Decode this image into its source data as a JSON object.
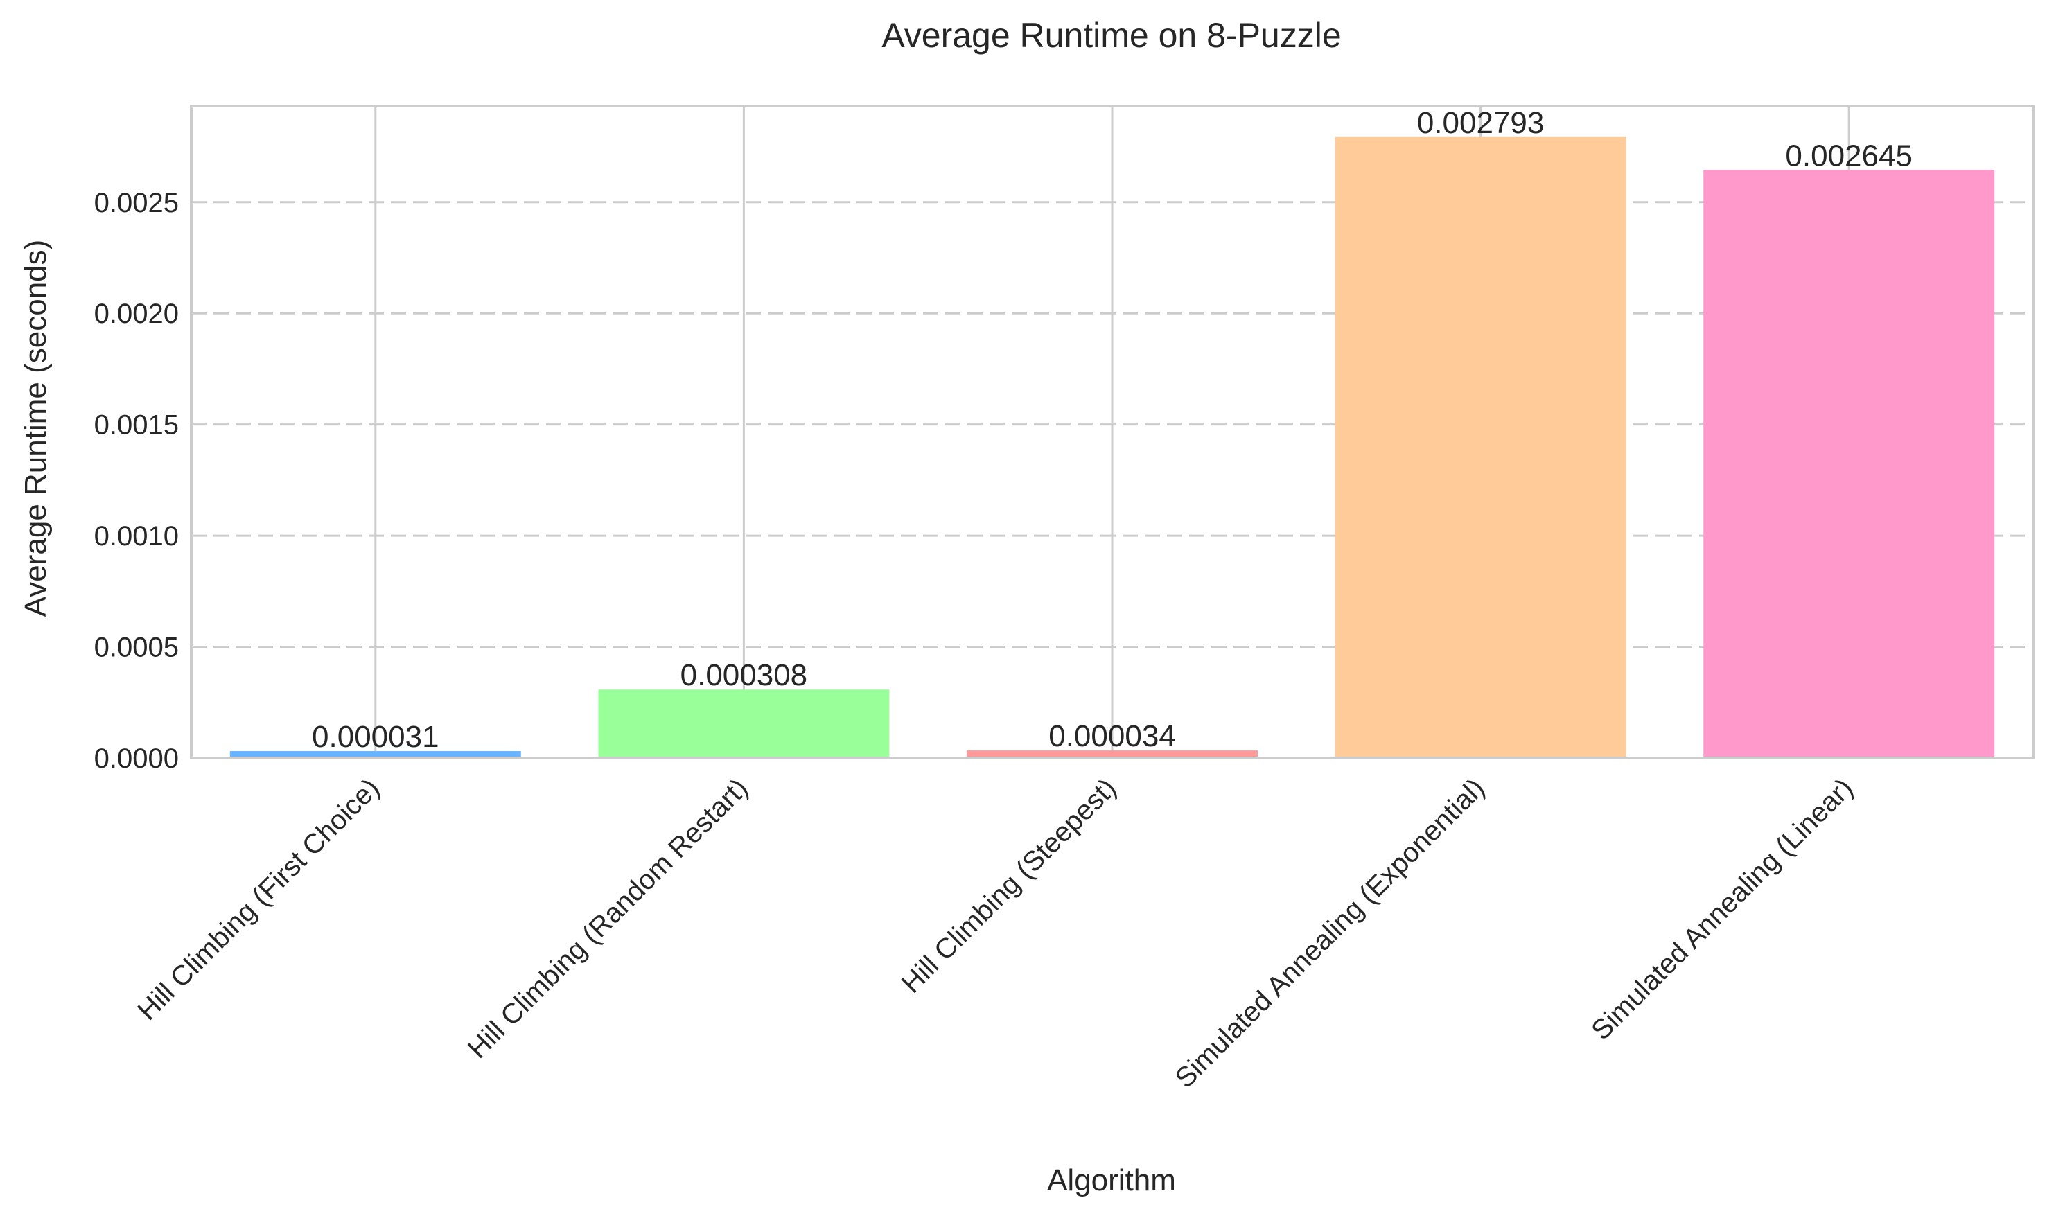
{
  "chart_data": {
    "type": "bar",
    "title": "Average Runtime on 8-Puzzle",
    "xlabel": "Algorithm",
    "ylabel": "Average Runtime (seconds)",
    "categories": [
      "Hill Climbing (First Choice)",
      "Hill Climbing (Random Restart)",
      "Hill Climbing (Steepest)",
      "Simulated Annealing (Exponential)",
      "Simulated Annealing (Linear)"
    ],
    "values": [
      3.1e-05,
      0.000308,
      3.4e-05,
      0.002793,
      0.002645
    ],
    "value_labels": [
      "0.000031",
      "0.000308",
      "0.000034",
      "0.002793",
      "0.002645"
    ],
    "colors": [
      "#66b3ff",
      "#99ff99",
      "#ff9999",
      "#ffcc99",
      "#ff99cc"
    ],
    "ylim": [
      0,
      0.0029326
    ],
    "yticks": [
      0,
      0.0005,
      0.001,
      0.0015,
      0.002,
      0.0025
    ],
    "ytick_labels": [
      "0.0000",
      "0.0005",
      "0.0010",
      "0.0015",
      "0.0020",
      "0.0025"
    ],
    "grid": {
      "y": true,
      "y_style": "dashed",
      "x": true,
      "x_style": "solid"
    },
    "legend": "none"
  }
}
